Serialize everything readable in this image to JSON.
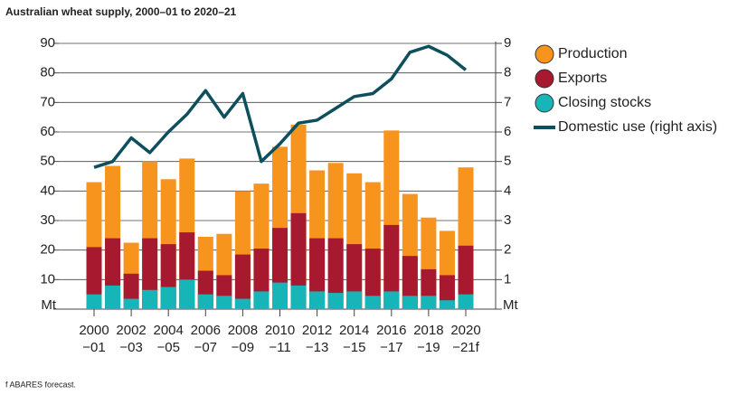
{
  "chart_data": {
    "type": "bar-line",
    "title": "Australian wheat supply, 2000–01 to 2020–21",
    "footnote": "f ABARES forecast.",
    "y_unit": "Mt",
    "y2_unit": "Mt",
    "categories": [
      "2000\n−01",
      null,
      "2002\n−03",
      null,
      "2004\n−05",
      null,
      "2006\n−07",
      null,
      "2008\n−09",
      null,
      "2010\n−11",
      null,
      "2012\n−13",
      null,
      "2014\n−15",
      null,
      "2016\n−17",
      null,
      "2018\n−19",
      null,
      "2020\n−21f"
    ],
    "series": [
      {
        "name": "Production",
        "color": "#f7941d",
        "values": [
          43,
          48.5,
          22.5,
          50,
          44,
          51,
          24.5,
          25.5,
          40,
          42.5,
          55,
          62.5,
          47,
          49.5,
          46,
          43,
          60.5,
          39,
          31,
          26.5,
          48
        ]
      },
      {
        "name": "Exports",
        "color": "#a6192e",
        "values": [
          21,
          24,
          12,
          24,
          22,
          26,
          13,
          11.5,
          18.5,
          20.5,
          27.5,
          32.5,
          24,
          24,
          22,
          20.5,
          28.5,
          18,
          13.5,
          11.5,
          21.5
        ]
      },
      {
        "name": "Closing stocks",
        "color": "#17b5b8",
        "values": [
          5,
          8,
          3.5,
          6.5,
          7.5,
          10,
          5,
          4.5,
          3.5,
          6,
          9,
          8,
          6,
          5.5,
          6,
          4.5,
          6,
          4.5,
          4.5,
          3,
          5
        ]
      },
      {
        "name": "Domestic use (right axis)",
        "color": "#0d4f5c",
        "axis": "y2",
        "values": [
          4.8,
          5.0,
          5.8,
          5.3,
          6.0,
          6.6,
          7.4,
          6.5,
          7.3,
          5.0,
          5.6,
          6.3,
          6.4,
          6.8,
          7.2,
          7.3,
          7.8,
          8.7,
          8.9,
          8.6,
          8.1
        ]
      }
    ],
    "ylim": [
      0,
      90
    ],
    "yticks": [
      10,
      20,
      30,
      40,
      50,
      60,
      70,
      80,
      90
    ],
    "y2lim": [
      0,
      9
    ],
    "y2ticks": [
      1,
      2,
      3,
      4,
      5,
      6,
      7,
      8,
      9
    ],
    "grid": true
  }
}
